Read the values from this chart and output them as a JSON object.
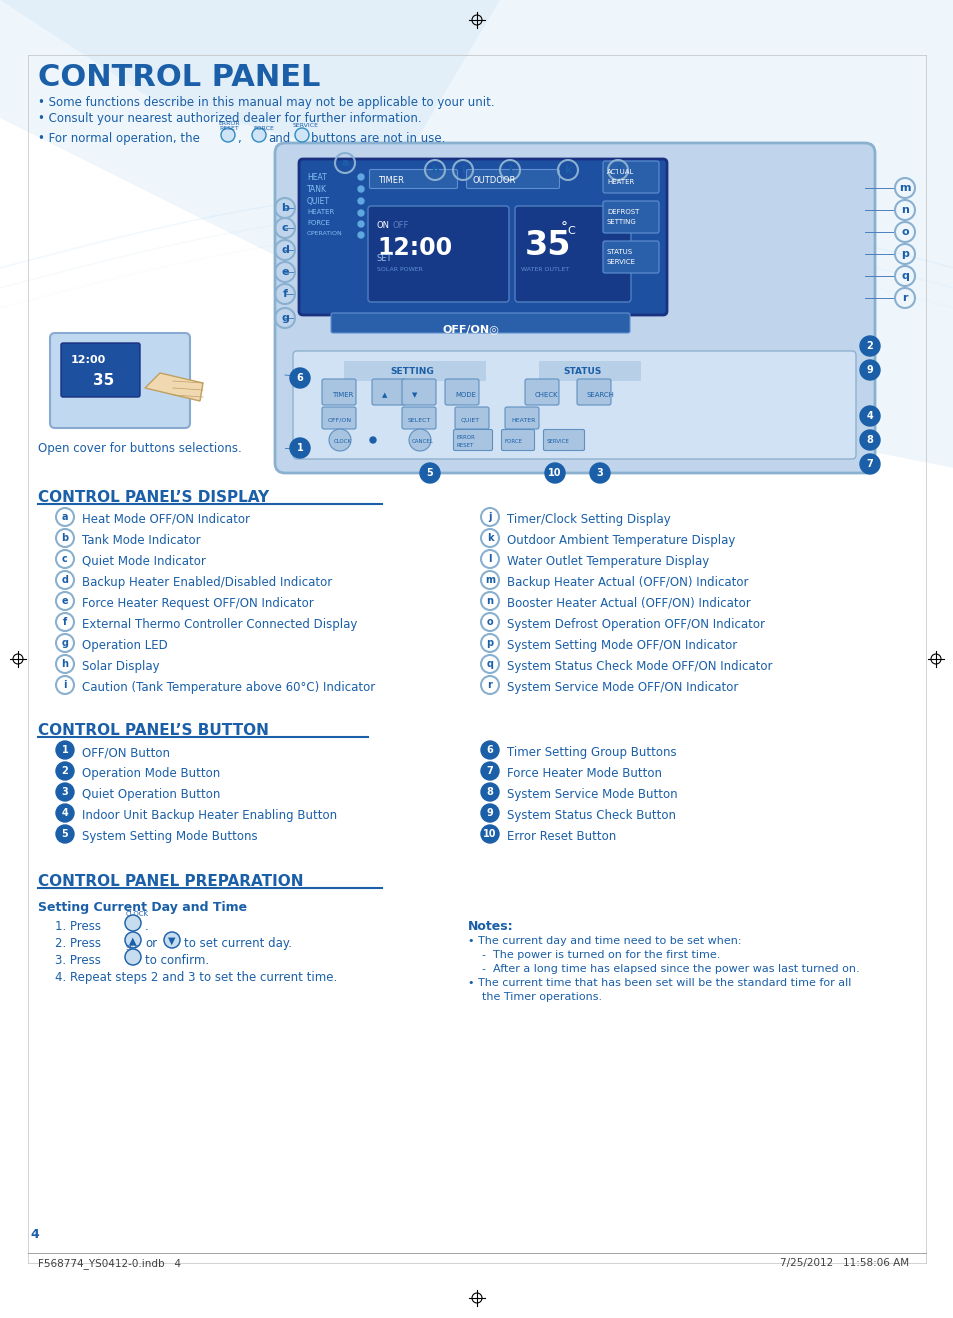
{
  "title": "CONTROL PANEL",
  "bg_color": "#ffffff",
  "blue_dark": "#1a5fa8",
  "blue_mid": "#2e8bc0",
  "blue_light": "#c8ddf0",
  "blue_lighter": "#e0eef8",
  "blue_panel": "#d0e4f4",
  "intro_line1": "• Some functions describe in this manual may not be applicable to your unit.",
  "intro_line2": "• Consult your nearest authorized dealer for further information.",
  "open_cover_text": "Open cover for buttons selections.",
  "display_section_title": "CONTROL PANEL’S DISPLAY",
  "display_items_left": [
    [
      "a",
      "Heat Mode OFF/ON Indicator"
    ],
    [
      "b",
      "Tank Mode Indicator"
    ],
    [
      "c",
      "Quiet Mode Indicator"
    ],
    [
      "d",
      "Backup Heater Enabled/Disabled Indicator"
    ],
    [
      "e",
      "Force Heater Request OFF/ON Indicator"
    ],
    [
      "f",
      "External Thermo Controller Connected Display"
    ],
    [
      "g",
      "Operation LED"
    ],
    [
      "h",
      "Solar Display"
    ],
    [
      "i",
      "Caution (Tank Temperature above 60°C) Indicator"
    ]
  ],
  "display_items_right": [
    [
      "j",
      "Timer/Clock Setting Display"
    ],
    [
      "k",
      "Outdoor Ambient Temperature Display"
    ],
    [
      "l",
      "Water Outlet Temperature Display"
    ],
    [
      "m",
      "Backup Heater Actual (OFF/ON) Indicator"
    ],
    [
      "n",
      "Booster Heater Actual (OFF/ON) Indicator"
    ],
    [
      "o",
      "System Defrost Operation OFF/ON Indicator"
    ],
    [
      "p",
      "System Setting Mode OFF/ON Indicator"
    ],
    [
      "q",
      "System Status Check Mode OFF/ON Indicator"
    ],
    [
      "r",
      "System Service Mode OFF/ON Indicator"
    ]
  ],
  "button_section_title": "CONTROL PANEL’S BUTTON",
  "button_items_left": [
    [
      "1",
      "OFF/ON Button"
    ],
    [
      "2",
      "Operation Mode Button"
    ],
    [
      "3",
      "Quiet Operation Button"
    ],
    [
      "4",
      "Indoor Unit Backup Heater Enabling Button"
    ],
    [
      "5",
      "System Setting Mode Buttons"
    ]
  ],
  "button_items_right": [
    [
      "6",
      "Timer Setting Group Buttons"
    ],
    [
      "7",
      "Force Heater Mode Button"
    ],
    [
      "8",
      "System Service Mode Button"
    ],
    [
      "9",
      "System Status Check Button"
    ],
    [
      "10",
      "Error Reset Button"
    ]
  ],
  "prep_section_title": "CONTROL PANEL PREPARATION",
  "prep_subtitle": "Setting Current Day and Time",
  "prep_step4": "4. Repeat steps 2 and 3 to set the current time.",
  "notes_title": "Notes:",
  "notes_lines": [
    "• The current day and time need to be set when:",
    "    -  The power is turned on for the first time.",
    "    -  After a long time has elapsed since the power was last turned on.",
    "• The current time that has been set will be the standard time for all",
    "    the Timer operations."
  ],
  "footer_left": "F568774_YS0412-0.indb   4",
  "footer_right": "7/25/2012   11:58:06 AM",
  "footer_page": "4"
}
